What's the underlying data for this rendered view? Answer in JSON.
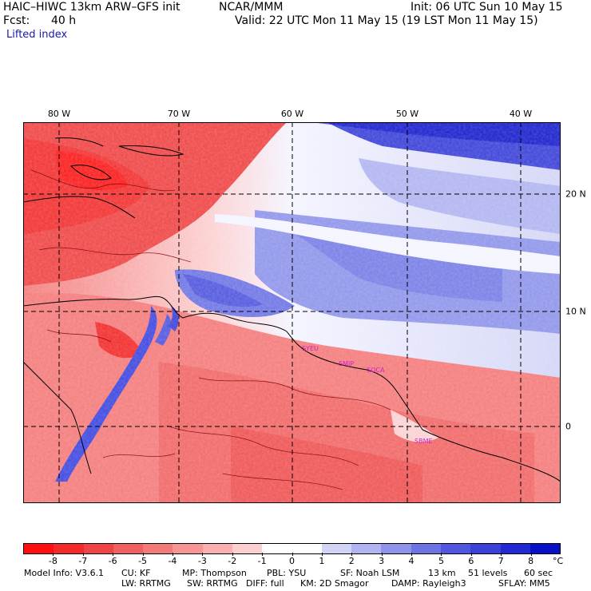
{
  "header": {
    "title": "HAIC–HIWC 13km ARW–GFS init",
    "org": "NCAR/MMM",
    "init": "Init: 06 UTC Sun 10 May 15",
    "fcst_label": "Fcst:",
    "fcst_value": "40 h",
    "valid": "Valid: 22 UTC Mon 11 May 15 (19 LST Mon 11 May 15)",
    "field": "Lifted index"
  },
  "map": {
    "lon_labels": [
      "80 W",
      "70 W",
      "60 W",
      "50 W",
      "40 W"
    ],
    "lat_labels": [
      "20 N",
      "10 N",
      "0"
    ],
    "stations": [
      "SYEU",
      "SMJP",
      "SOCA",
      "SBME"
    ],
    "colors": {
      "neg": "#e83030",
      "pos": "#3c46e0",
      "station": "#cc22cc"
    }
  },
  "colorbar": {
    "labels": [
      "-8",
      "-7",
      "-6",
      "-5",
      "-4",
      "-3",
      "-2",
      "-1",
      "0",
      "1",
      "2",
      "3",
      "4",
      "5",
      "6",
      "7",
      "8"
    ],
    "unit": "°C",
    "colors": [
      "#ff1010",
      "#f22a2a",
      "#ef4444",
      "#f06060",
      "#f47a7a",
      "#f79494",
      "#fab0b0",
      "#fcd0d0",
      "#ffffff",
      "#ffffff",
      "#d2d4f6",
      "#b0b4f0",
      "#8e94ea",
      "#6e74e4",
      "#5056de",
      "#3a40d8",
      "#2228d2",
      "#0a10c8"
    ]
  },
  "footer": {
    "line1": {
      "model_info": "Model Info: V3.6.1",
      "cu": "CU: KF",
      "mp": "MP: Thompson",
      "pbl": "PBL: YSU",
      "sf": "SF: Noah LSM",
      "res": "13 km",
      "levels": "51 levels",
      "dt": "60 sec"
    },
    "line2": {
      "lw": "LW: RRTMG",
      "sw": "SW: RRTMG",
      "diff": "DIFF: full",
      "km": "KM: 2D Smagor",
      "damp": "DAMP: Rayleigh3",
      "sflay": "SFLAY: MM5"
    }
  }
}
